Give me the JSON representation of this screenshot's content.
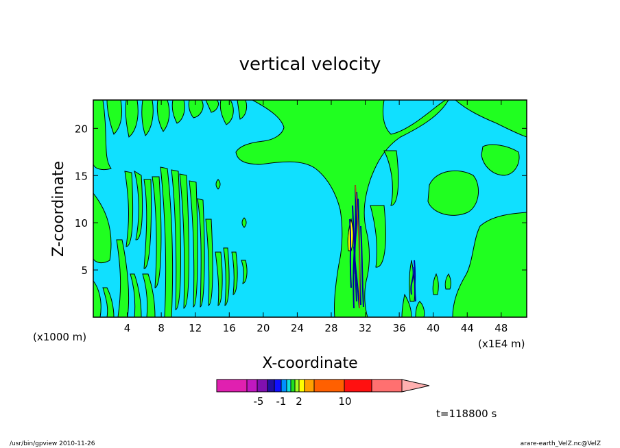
{
  "chart_data": {
    "type": "heatmap",
    "title": "vertical velocity",
    "xlabel": "X-coordinate",
    "ylabel": "Z-coordinate",
    "x_unit_left": "(x1000 m)",
    "x_unit_right": "(x1E4 m)",
    "xlim": [
      0,
      51
    ],
    "ylim": [
      0,
      23
    ],
    "x_ticks": [
      "4",
      "8",
      "12",
      "16",
      "20",
      "24",
      "28",
      "32",
      "36",
      "40",
      "44",
      "48"
    ],
    "y_ticks": [
      "5",
      "10",
      "15",
      "20"
    ],
    "colorbar": {
      "colors": [
        "#e020b0",
        "#c018c0",
        "#8010b0",
        "#2010a0",
        "#1010ff",
        "#0090ff",
        "#10e0e0",
        "#20e020",
        "#a0ff20",
        "#ffff00",
        "#ffa000",
        "#ff6000",
        "#ff1010",
        "#ff7070",
        "#ffb0b0"
      ],
      "labels": [
        "-5",
        "-1",
        "2",
        "10"
      ],
      "extend": "right"
    },
    "fields": {
      "background": "#10e0ff",
      "positive": "#20ff20",
      "strong_positive": "#ffff00",
      "negative_core": "#0000a0"
    }
  },
  "annotations": {
    "time": "t=118800 s",
    "footer_left": "/usr/bin/gpview   2010-11-26",
    "footer_right": "arare-earth_VelZ.nc@VelZ"
  }
}
